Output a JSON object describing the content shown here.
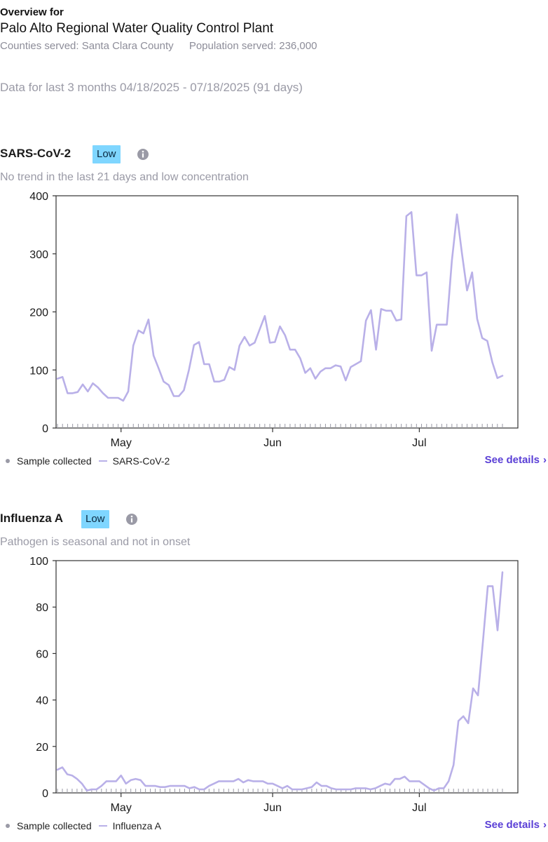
{
  "header": {
    "overview_label": "Overview for",
    "plant_name": "Palo Alto Regional Water Quality Control Plant",
    "counties": "Counties served: Santa Clara County",
    "population": "Population served: 236,000"
  },
  "range_text": "Data for last 3 months 04/18/2025 - 07/18/2025 (91 days)",
  "colors": {
    "line": "#b9b0e8",
    "axis": "#333333",
    "badge": "#7fd6ff",
    "link": "#5a3fd6"
  },
  "sections": [
    {
      "title": "SARS-CoV-2",
      "badge": "Low",
      "description": "No trend in the last 21 days and low concentration",
      "legend_sample": "Sample collected",
      "legend_series": "SARS-CoV-2",
      "details_label": "See details",
      "details_icon": "chevron-right-icon",
      "info_icon": "info-icon"
    },
    {
      "title": "Influenza A",
      "badge": "Low",
      "description": "Pathogen is seasonal and not in onset",
      "legend_sample": "Sample collected",
      "legend_series": "Influenza A",
      "details_label": "See details",
      "details_icon": "chevron-right-icon",
      "info_icon": "info-icon"
    }
  ],
  "chart_data": [
    {
      "type": "line",
      "x_start": "2025-04-18",
      "x_end": "2025-07-18",
      "xticks": [
        {
          "label": "May",
          "date": "2025-05-01"
        },
        {
          "label": "Jun",
          "date": "2025-06-01"
        },
        {
          "label": "Jul",
          "date": "2025-07-01"
        }
      ],
      "ylim": [
        0,
        400
      ],
      "yticks": [
        0,
        100,
        200,
        300,
        400
      ],
      "grid": false,
      "series": [
        {
          "name": "SARS-CoV-2",
          "values": [
            85,
            88,
            60,
            60,
            62,
            75,
            63,
            77,
            70,
            60,
            52,
            52,
            52,
            47,
            63,
            142,
            168,
            163,
            187,
            125,
            103,
            80,
            74,
            55,
            55,
            65,
            100,
            143,
            148,
            110,
            110,
            80,
            80,
            83,
            105,
            100,
            142,
            157,
            142,
            147,
            170,
            193,
            147,
            148,
            175,
            160,
            135,
            135,
            120,
            95,
            103,
            85,
            97,
            103,
            103,
            108,
            106,
            82,
            105,
            110,
            115,
            185,
            203,
            135,
            205,
            202,
            202,
            185,
            187,
            365,
            372,
            263,
            263,
            268,
            133,
            178,
            178,
            178,
            288,
            368,
            300,
            237,
            268,
            188,
            155,
            150,
            113,
            86,
            90
          ]
        }
      ]
    },
    {
      "type": "line",
      "x_start": "2025-04-18",
      "x_end": "2025-07-18",
      "xticks": [
        {
          "label": "May",
          "date": "2025-05-01"
        },
        {
          "label": "Jun",
          "date": "2025-06-01"
        },
        {
          "label": "Jul",
          "date": "2025-07-01"
        }
      ],
      "ylim": [
        0,
        100
      ],
      "yticks": [
        0,
        20,
        40,
        60,
        80,
        100
      ],
      "grid": false,
      "series": [
        {
          "name": "Influenza A",
          "values": [
            10,
            11,
            8,
            7.5,
            6,
            4,
            1,
            1.5,
            1.5,
            3,
            5,
            5,
            5,
            7.5,
            4,
            5.5,
            6,
            5.5,
            3,
            3,
            3,
            2.5,
            2.5,
            3,
            3,
            3,
            3,
            2,
            2.5,
            1.5,
            1.5,
            3,
            4,
            5,
            5,
            5,
            5,
            6,
            4.5,
            5.5,
            5,
            5,
            5,
            4,
            4,
            3,
            2,
            3,
            1.5,
            1.5,
            1.5,
            2,
            2.5,
            4.5,
            3,
            3,
            2,
            1.5,
            1.5,
            1.5,
            1.5,
            2,
            2,
            2,
            1.5,
            2,
            3,
            4,
            3.5,
            6,
            6,
            7,
            5,
            5,
            5,
            3.5,
            2,
            1,
            2,
            2,
            5,
            12,
            31,
            33,
            30,
            45,
            42,
            65,
            89,
            89,
            70,
            95
          ]
        }
      ]
    }
  ]
}
